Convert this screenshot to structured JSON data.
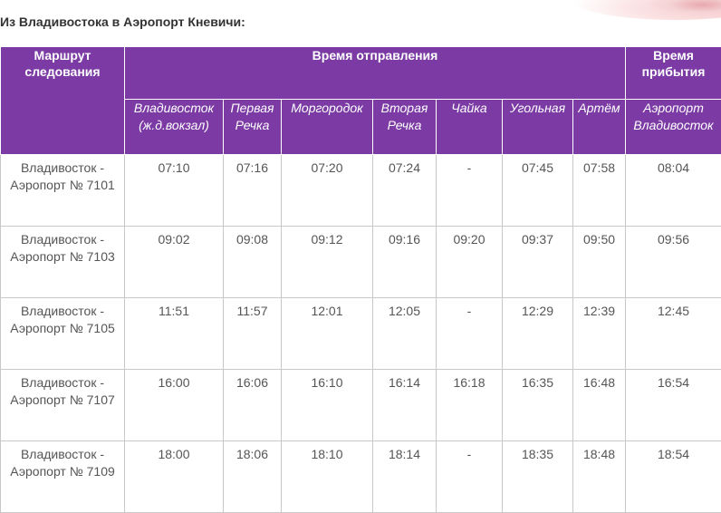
{
  "heading": "Из Владивостока в Аэропорт Кневичи:",
  "header": {
    "route": "Маршрут следования",
    "departure": "Время отправления",
    "arrival": "Время прибытия",
    "stations": [
      "Владивосток (ж.д.вокзал)",
      "Первая Речка",
      "Моргородок",
      "Вторая Речка",
      "Чайка",
      "Угольная",
      "Артём"
    ],
    "arrival_station": "Аэропорт Владивосток"
  },
  "rows": [
    {
      "route": "Владивосток - Аэропорт № 7101",
      "times": [
        "07:10",
        "07:16",
        "07:20",
        "07:24",
        "-",
        "07:45",
        "07:58"
      ],
      "arrival": "08:04"
    },
    {
      "route": "Владивосток - Аэропорт № 7103",
      "times": [
        "09:02",
        "09:08",
        "09:12",
        "09:16",
        "09:20",
        "09:37",
        "09:50"
      ],
      "arrival": "09:56"
    },
    {
      "route": "Владивосток - Аэропорт № 7105",
      "times": [
        "11:51",
        "11:57",
        "12:01",
        "12:05",
        "-",
        "12:29",
        "12:39"
      ],
      "arrival": "12:45"
    },
    {
      "route": "Владивосток - Аэропорт № 7107",
      "times": [
        "16:00",
        "16:06",
        "16:10",
        "16:14",
        "16:18",
        "16:35",
        "16:48"
      ],
      "arrival": "16:54"
    },
    {
      "route": "Владивосток - Аэропорт № 7109",
      "times": [
        "18:00",
        "18:06",
        "18:10",
        "18:14",
        "-",
        "18:35",
        "18:48"
      ],
      "arrival": "18:54"
    }
  ],
  "colors": {
    "header_bg": "#7b3aa4",
    "header_text": "#ffffff",
    "cell_text": "#555555",
    "grid": "#c8c8c8"
  }
}
